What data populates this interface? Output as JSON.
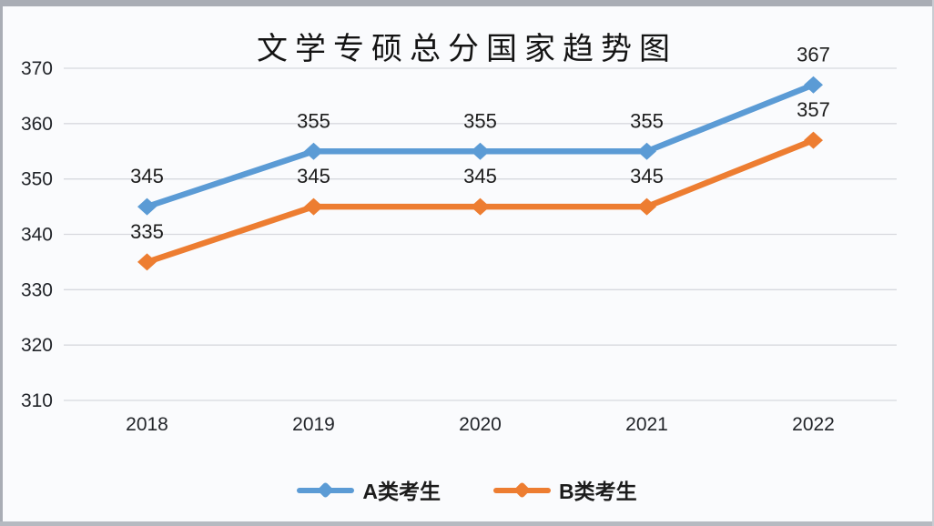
{
  "frame": {
    "background": "#fafbfd",
    "border_color": "#a9adb5"
  },
  "chart_data": {
    "type": "line",
    "title": "文学专硕总分国家趋势图",
    "categories": [
      "2018",
      "2019",
      "2020",
      "2021",
      "2022"
    ],
    "series": [
      {
        "name": "A类考生",
        "color": "#5B9BD5",
        "values": [
          345,
          355,
          355,
          355,
          367
        ]
      },
      {
        "name": "B类考生",
        "color": "#ED7D31",
        "values": [
          335,
          345,
          345,
          345,
          357
        ]
      }
    ],
    "ylim": [
      310,
      370
    ],
    "ytick_step": 10,
    "ytick_labels": [
      "310",
      "320",
      "330",
      "340",
      "350",
      "360",
      "370"
    ],
    "grid": true,
    "gridline_color": "#d7d9de",
    "data_labels": true,
    "data_label_color": "#1c1c1c",
    "axis_label_color": "#22252a",
    "legend_position": "bottom",
    "xlabel": "",
    "ylabel": ""
  }
}
